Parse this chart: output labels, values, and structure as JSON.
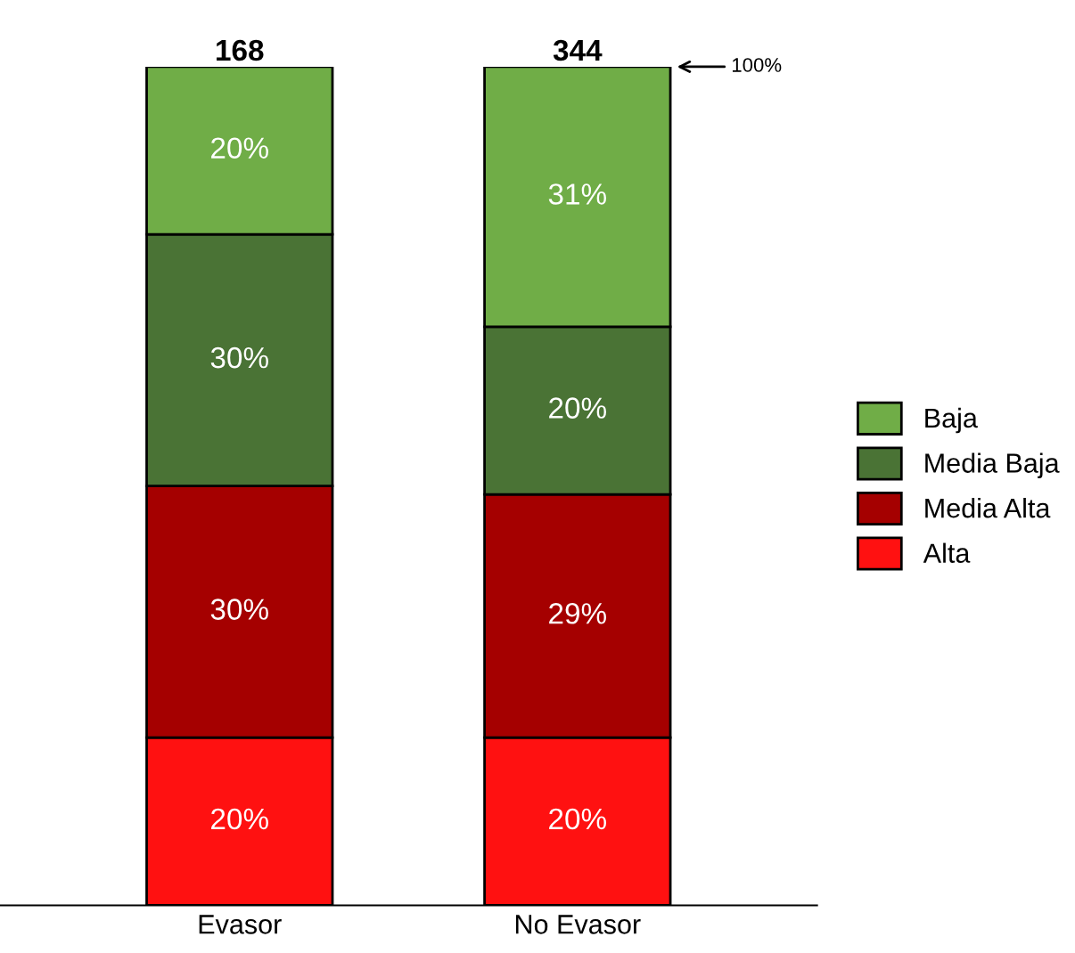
{
  "chart_data": {
    "type": "bar",
    "stacked": true,
    "categories": [
      "Evasor",
      "No Evasor"
    ],
    "series": [
      {
        "name": "Alta",
        "color": "#ff1111",
        "values": [
          20,
          20
        ],
        "value_labels": [
          "20%",
          "20%"
        ]
      },
      {
        "name": "Media Alta",
        "color": "#a50000",
        "values": [
          30,
          29
        ],
        "value_labels": [
          "30%",
          "29%"
        ]
      },
      {
        "name": "Media Baja",
        "color": "#4a7335",
        "values": [
          30,
          20
        ],
        "value_labels": [
          "30%",
          "20%"
        ]
      },
      {
        "name": "Baja",
        "color": "#70ad47",
        "values": [
          20,
          31
        ],
        "value_labels": [
          "20%",
          "31%"
        ]
      }
    ],
    "annotations": [
      {
        "text": "168",
        "x": "Evasor",
        "y": 100
      },
      {
        "text": "344",
        "x": "No Evasor",
        "y": 100
      },
      "100%"
    ],
    "legend": "right",
    "grid": false
  }
}
